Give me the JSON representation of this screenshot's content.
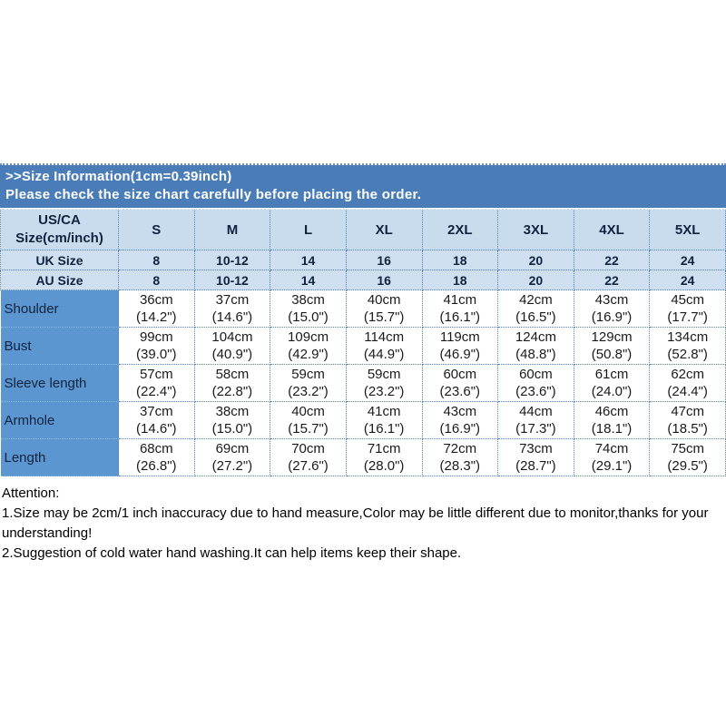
{
  "banner": {
    "title": ">>Size Information(1cm=0.39inch)",
    "subtitle": "Please check the size chart carefully before placing the order."
  },
  "table": {
    "corner": {
      "line1": "US/CA",
      "line2": "Size(cm/inch)"
    },
    "sizes": [
      "S",
      "M",
      "L",
      "XL",
      "2XL",
      "3XL",
      "4XL",
      "5XL"
    ],
    "size_rows": [
      {
        "label": "UK Size",
        "values": [
          "8",
          "10-12",
          "14",
          "16",
          "18",
          "20",
          "22",
          "24"
        ]
      },
      {
        "label": "AU Size",
        "values": [
          "8",
          "10-12",
          "14",
          "16",
          "18",
          "20",
          "22",
          "24"
        ]
      }
    ],
    "measure_rows": [
      {
        "label": "Shoulder",
        "values": [
          {
            "cm": "36cm",
            "in": "(14.2\")"
          },
          {
            "cm": "37cm",
            "in": "(14.6\")"
          },
          {
            "cm": "38cm",
            "in": "(15.0\")"
          },
          {
            "cm": "40cm",
            "in": "(15.7\")"
          },
          {
            "cm": "41cm",
            "in": "(16.1\")"
          },
          {
            "cm": "42cm",
            "in": "(16.5\")"
          },
          {
            "cm": "43cm",
            "in": "(16.9\")"
          },
          {
            "cm": "45cm",
            "in": "(17.7\")"
          }
        ]
      },
      {
        "label": "Bust",
        "values": [
          {
            "cm": "99cm",
            "in": "(39.0\")"
          },
          {
            "cm": "104cm",
            "in": "(40.9\")"
          },
          {
            "cm": "109cm",
            "in": "(42.9\")"
          },
          {
            "cm": "114cm",
            "in": "(44.9\")"
          },
          {
            "cm": "119cm",
            "in": "(46.9\")"
          },
          {
            "cm": "124cm",
            "in": "(48.8\")"
          },
          {
            "cm": "129cm",
            "in": "(50.8\")"
          },
          {
            "cm": "134cm",
            "in": "(52.8\")"
          }
        ]
      },
      {
        "label": "Sleeve length",
        "values": [
          {
            "cm": "57cm",
            "in": "(22.4\")"
          },
          {
            "cm": "58cm",
            "in": "(22.8\")"
          },
          {
            "cm": "59cm",
            "in": "(23.2\")"
          },
          {
            "cm": "59cm",
            "in": "(23.2\")"
          },
          {
            "cm": "60cm",
            "in": "(23.6\")"
          },
          {
            "cm": "60cm",
            "in": "(23.6\")"
          },
          {
            "cm": "61cm",
            "in": "(24.0\")"
          },
          {
            "cm": "62cm",
            "in": "(24.4\")"
          }
        ]
      },
      {
        "label": "Armhole",
        "values": [
          {
            "cm": "37cm",
            "in": "(14.6\")"
          },
          {
            "cm": "38cm",
            "in": "(15.0\")"
          },
          {
            "cm": "40cm",
            "in": "(15.7\")"
          },
          {
            "cm": "41cm",
            "in": "(16.1\")"
          },
          {
            "cm": "43cm",
            "in": "(16.9\")"
          },
          {
            "cm": "44cm",
            "in": "(17.3\")"
          },
          {
            "cm": "46cm",
            "in": "(18.1\")"
          },
          {
            "cm": "47cm",
            "in": "(18.5\")"
          }
        ]
      },
      {
        "label": "Length",
        "values": [
          {
            "cm": "68cm",
            "in": "(26.8\")"
          },
          {
            "cm": "69cm",
            "in": "(27.2\")"
          },
          {
            "cm": "70cm",
            "in": "(27.6\")"
          },
          {
            "cm": "71cm",
            "in": "(28.0\")"
          },
          {
            "cm": "72cm",
            "in": "(28.3\")"
          },
          {
            "cm": "73cm",
            "in": "(28.7\")"
          },
          {
            "cm": "74cm",
            "in": "(29.1\")"
          },
          {
            "cm": "75cm",
            "in": "(29.5\")"
          }
        ]
      }
    ]
  },
  "attention": {
    "heading": "Attention:",
    "notes": [
      "1.Size may be 2cm/1 inch inaccuracy due to hand measure,Color may be little different due to monitor,thanks for your understanding!",
      "2.Suggestion of cold water hand washing.It can help items keep their shape."
    ]
  },
  "colors": {
    "banner_blue": "#4a7db8",
    "header_light_blue": "#c9dcee",
    "uk_au_row_blue": "#cfdfef",
    "label_column_blue": "#5b96d0",
    "grid_dotted_blue": "#4f81bd",
    "banner_text": "#ffffff",
    "header_text": "#10233f",
    "body_text": "#1a1a1a"
  }
}
